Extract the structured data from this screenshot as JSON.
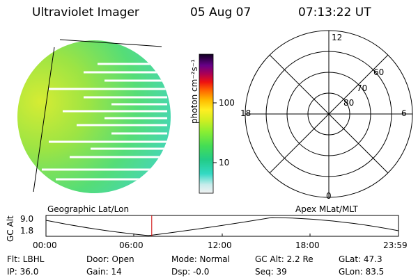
{
  "header": {
    "instrument": "Ultraviolet Imager",
    "date": "05 Aug 07",
    "time": "07:13:22 UT"
  },
  "colorbar": {
    "unit_label": "photon cm⁻²s⁻¹",
    "ticks": [
      "100",
      "10"
    ]
  },
  "polar_plot": {
    "lat_labels": [
      "60",
      "70",
      "80"
    ],
    "mlt_labels": [
      "12",
      "18",
      "6",
      "0"
    ]
  },
  "altitude_panel": {
    "left_label": "Geographic Lat/Lon",
    "right_label": "Apex MLat/MLT",
    "y_axis_label": "GC Alt",
    "y_ticks": [
      "9.0",
      "1.8"
    ],
    "x_ticks": [
      "00:00",
      "06:00",
      "12:00",
      "18:00",
      "23:59"
    ],
    "current_time_fraction": 0.3
  },
  "info": {
    "flt": "Flt: LBHL",
    "ip": "IP: 36.0",
    "door": "Door: Open",
    "gain": "Gain: 14",
    "mode": "Mode: Normal",
    "dsp": "Dsp:   -0.0",
    "gc_alt": "GC Alt: 2.2 Re",
    "seq": "Seq: 39",
    "glat": "GLat:  47.3",
    "glon": "GLon:  83.5"
  },
  "colors": {
    "marker": "#cc0000",
    "disk_base": "#55dd66",
    "dayside": "#cce833"
  }
}
